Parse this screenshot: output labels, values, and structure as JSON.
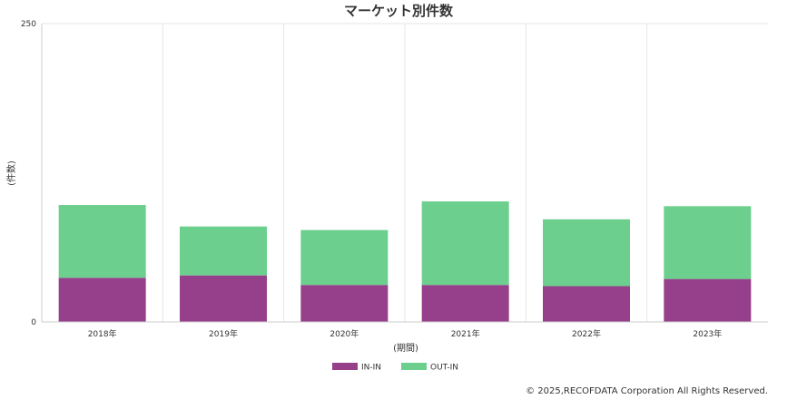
{
  "chart_data": {
    "type": "bar",
    "stacked": true,
    "title": "マーケット別件数",
    "xlabel": "(期間)",
    "ylabel": "(件数)",
    "ylim": [
      0,
      250
    ],
    "yticks": [
      "0",
      "250"
    ],
    "categories": [
      "2018年",
      "2019年",
      "2020年",
      "2021年",
      "2022年",
      "2023年"
    ],
    "series": [
      {
        "name": "IN-IN",
        "color": "#963f8a",
        "values": [
          37,
          39,
          31,
          31,
          30,
          36
        ]
      },
      {
        "name": "OUT-IN",
        "color": "#6ccf8e",
        "values": [
          61,
          41,
          46,
          70,
          56,
          61
        ]
      }
    ],
    "grid": "vertical",
    "legend": "bottom-center"
  },
  "footer": {
    "copyright": "© 2025,RECOFDATA Corporation All Rights Reserved."
  }
}
